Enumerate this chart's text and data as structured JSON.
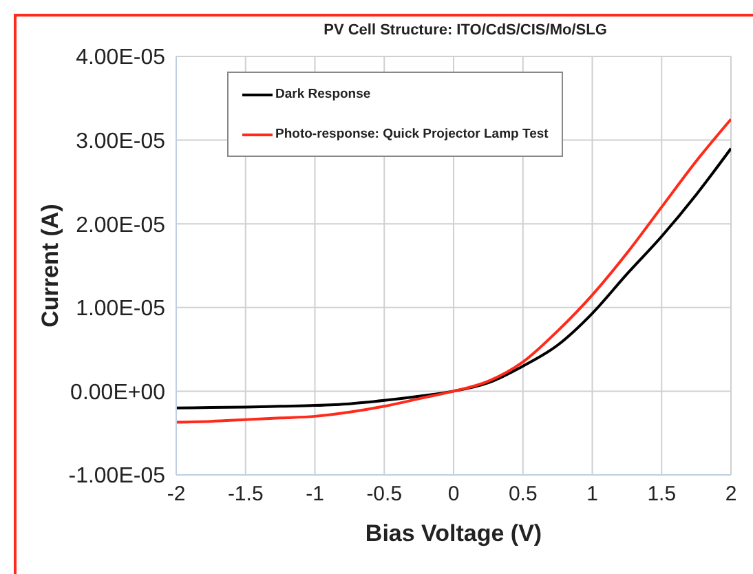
{
  "chart_data": {
    "type": "line",
    "title": "PV Cell Structure: ITO/CdS/CIS/Mo/SLG",
    "xlabel": "Bias Voltage (V)",
    "ylabel": "Current (A)",
    "x": [
      -2,
      -1.75,
      -1.5,
      -1.25,
      -1,
      -0.75,
      -0.5,
      -0.25,
      0,
      0.25,
      0.5,
      0.75,
      1,
      1.25,
      1.5,
      1.75,
      2
    ],
    "series": [
      {
        "name": "Dark Response",
        "color": "#000000",
        "values": [
          -2e-06,
          -1.95e-06,
          -1.9e-06,
          -1.8e-06,
          -1.7e-06,
          -1.5e-06,
          -1.1e-06,
          -6e-07,
          0,
          1e-06,
          3e-06,
          5.5e-06,
          9.3e-06,
          1.4e-05,
          1.85e-05,
          2.35e-05,
          2.9e-05
        ]
      },
      {
        "name": "Photo-response: Quick Projector Lamp Test",
        "color": "#ff2a1a",
        "values": [
          -3.7e-06,
          -3.6e-06,
          -3.4e-06,
          -3.2e-06,
          -3e-06,
          -2.5e-06,
          -1.8e-06,
          -9e-07,
          0,
          1.2e-06,
          3.5e-06,
          7.2e-06,
          1.15e-05,
          1.65e-05,
          2.2e-05,
          2.75e-05,
          3.25e-05
        ]
      }
    ],
    "xlim": [
      -2,
      2
    ],
    "xticks": [
      -2,
      -1.5,
      -1,
      -0.5,
      0,
      0.5,
      1,
      1.5,
      2
    ],
    "ylim": [
      -1e-05,
      4e-05
    ],
    "yticks": [
      {
        "value": -1e-05,
        "label": "-1.00E-05"
      },
      {
        "value": 0,
        "label": "0.00E+00"
      },
      {
        "value": 1e-05,
        "label": "1.00E-05"
      },
      {
        "value": 2e-05,
        "label": "2.00E-05"
      },
      {
        "value": 3e-05,
        "label": "3.00E-05"
      },
      {
        "value": 4e-05,
        "label": "4.00E-05"
      }
    ],
    "grid": true,
    "legend": "top left",
    "marker": "none",
    "line_style": "solid"
  }
}
